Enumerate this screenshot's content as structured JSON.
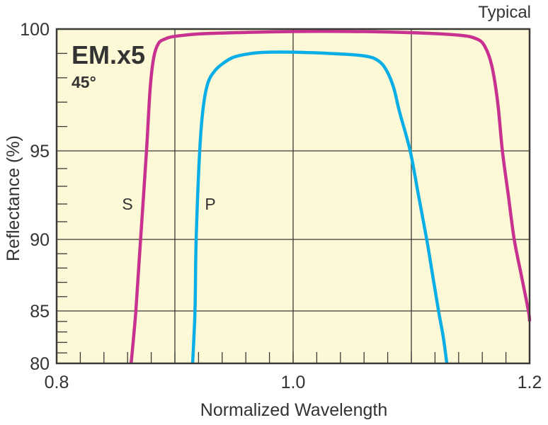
{
  "chart_data": {
    "type": "line",
    "title": "EM.x5",
    "subtitle": "45°",
    "note": "Typical",
    "xlabel": "Normalized Wavelength",
    "ylabel": "Reflectance (%)",
    "xlim": [
      0.8,
      1.2
    ],
    "ylim": [
      80,
      100
    ],
    "xticks": [
      0.8,
      1.0,
      1.2
    ],
    "xtick_labels": [
      "0.8",
      "1.0",
      "1.2"
    ],
    "yticks": [
      80,
      85,
      90,
      95,
      100
    ],
    "ytick_labels": [
      "80",
      "85",
      "90",
      "95",
      "100"
    ],
    "grid": true,
    "background": "#fdf9d7",
    "series": [
      {
        "name": "S",
        "color": "#c8318f",
        "x": [
          0.863,
          0.867,
          0.871,
          0.876,
          0.879,
          0.882,
          0.886,
          0.892,
          0.9,
          0.92,
          0.95,
          1.0,
          1.05,
          1.1,
          1.14,
          1.155,
          1.162,
          1.168,
          1.173,
          1.177,
          1.182,
          1.187,
          1.193,
          1.199,
          1.2
        ],
        "y": [
          80,
          85,
          90,
          95,
          97.5,
          98.8,
          99.4,
          99.6,
          99.7,
          99.8,
          99.85,
          99.9,
          99.9,
          99.85,
          99.75,
          99.6,
          99.3,
          98.5,
          97,
          95,
          92.5,
          90,
          87.5,
          85,
          84
        ]
      },
      {
        "name": "P",
        "color": "#0aaee6",
        "x": [
          0.915,
          0.917,
          0.918,
          0.921,
          0.924,
          0.928,
          0.934,
          0.941,
          0.95,
          0.965,
          0.98,
          1.0,
          1.03,
          1.06,
          1.072,
          1.079,
          1.085,
          1.09,
          1.099,
          1.106,
          1.113,
          1.118,
          1.123,
          1.127,
          1.13
        ],
        "y": [
          80,
          85,
          90,
          95,
          96.8,
          97.8,
          98.3,
          98.6,
          98.85,
          99.0,
          99.05,
          99.05,
          99.0,
          98.9,
          98.7,
          98.3,
          97.6,
          96.6,
          95,
          92.5,
          90,
          87.5,
          85,
          82.5,
          80
        ]
      }
    ],
    "annotations": [
      "S",
      "P"
    ]
  }
}
